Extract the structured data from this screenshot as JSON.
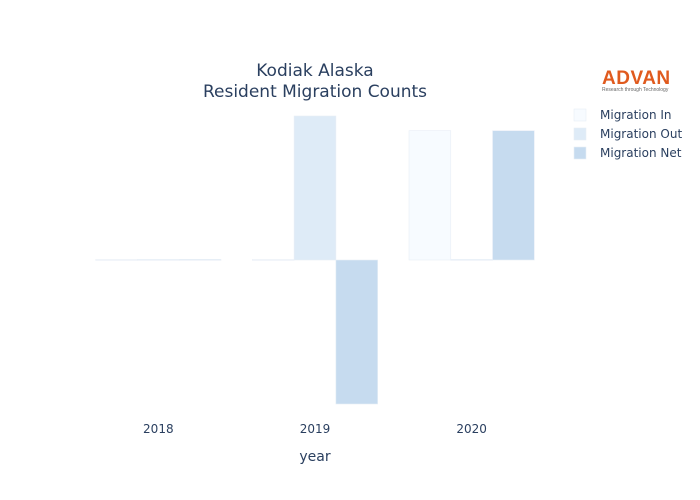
{
  "chart_data": {
    "type": "bar",
    "title_lines": [
      "Kodiak Alaska",
      "Resident Migration Counts"
    ],
    "xlabel": "year",
    "ylabel": "",
    "categories": [
      "2018",
      "2019",
      "2020"
    ],
    "series": [
      {
        "name": "Migration In",
        "values": [
          0,
          0,
          44
        ],
        "color": "#f7fbff"
      },
      {
        "name": "Migration Out",
        "values": [
          0,
          49,
          0
        ],
        "color": "#deebf7"
      },
      {
        "name": "Migration Net",
        "values": [
          0,
          -49,
          44
        ],
        "color": "#c6dbef"
      }
    ],
    "ylim": [
      -49,
      49
    ],
    "grid": false,
    "yaxis_visible": false,
    "legend_position": "top-right"
  },
  "logo": {
    "text": "ADVAN",
    "tagline": "Research through Technology"
  }
}
